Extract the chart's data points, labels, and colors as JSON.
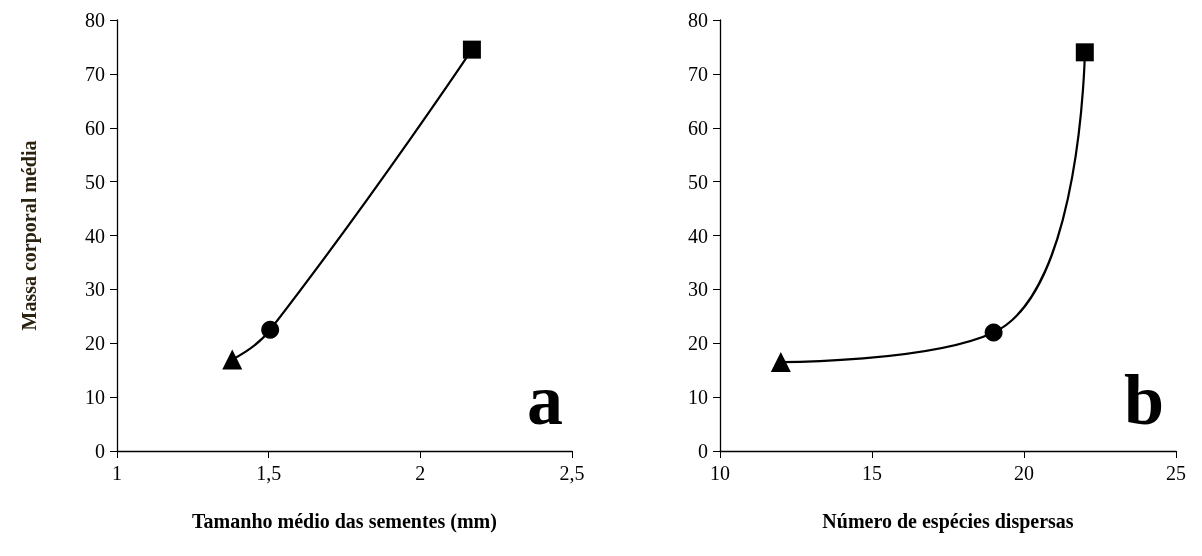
{
  "chart_data": [
    {
      "type": "line",
      "xlabel": "Tamanho médio das sementes (mm)",
      "ylabel": "Massa corporal média",
      "annotations": [
        "a"
      ],
      "series": [
        {
          "color": "#000000",
          "x": [
            1.38,
            1.505,
            2.17
          ],
          "values": [
            17,
            22.5,
            74.5
          ],
          "marker": "none"
        },
        {
          "type": "scatter",
          "color": "#000000",
          "x": [
            1.38
          ],
          "values": [
            17
          ],
          "marker": "triangle"
        },
        {
          "type": "scatter",
          "color": "#000000",
          "x": [
            1.505
          ],
          "values": [
            22.5
          ],
          "marker": "circle"
        },
        {
          "type": "scatter",
          "color": "#000000",
          "x": [
            2.17
          ],
          "values": [
            74.5
          ],
          "marker": "square"
        }
      ],
      "xlim": [
        1,
        2.5
      ],
      "xticks": [
        1,
        {
          "value": 1.5,
          "label": "1,5"
        },
        2,
        {
          "value": 2.5,
          "label": "2,5"
        }
      ],
      "ylim": [
        0,
        80
      ],
      "yticks": [
        0,
        10,
        20,
        30,
        40,
        50,
        60,
        70,
        80
      ],
      "grid": false
    },
    {
      "type": "line",
      "xlabel": "Número de espécies dispersas",
      "annotations": [
        "b"
      ],
      "series": [
        {
          "color": "#000000",
          "x": [
            12,
            19,
            22
          ],
          "values": [
            16.5,
            22,
            74
          ],
          "marker": "none"
        },
        {
          "type": "scatter",
          "color": "#000000",
          "x": [
            12
          ],
          "values": [
            16.5
          ],
          "marker": "triangle"
        },
        {
          "type": "scatter",
          "color": "#000000",
          "x": [
            19
          ],
          "values": [
            22
          ],
          "marker": "circle"
        },
        {
          "type": "scatter",
          "color": "#000000",
          "x": [
            22
          ],
          "values": [
            74
          ],
          "marker": "square"
        }
      ],
      "xlim": [
        10,
        25
      ],
      "xticks": [
        10,
        15,
        20,
        25
      ],
      "ylim": [
        0,
        80
      ],
      "yticks": [
        0,
        10,
        20,
        30,
        40,
        50,
        60,
        70,
        80
      ],
      "grid": false
    }
  ]
}
